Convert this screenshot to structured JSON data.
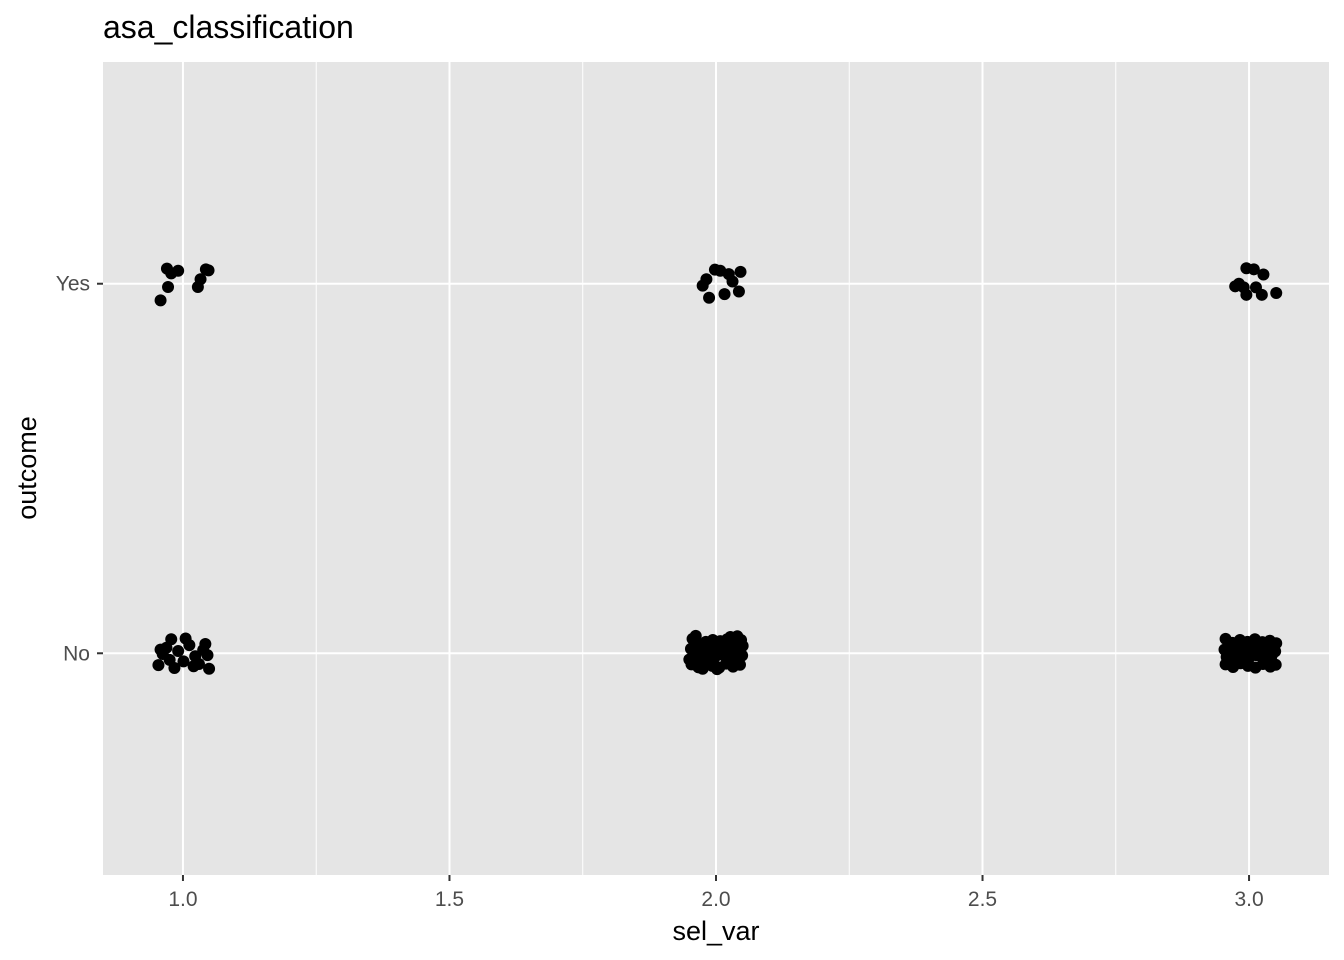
{
  "chart_data": {
    "type": "scatter",
    "title": "asa_classification",
    "xlabel": "sel_var",
    "ylabel": "outcome",
    "x_ticks": [
      "1.0",
      "1.5",
      "2.0",
      "2.5",
      "3.0"
    ],
    "x_tick_values": [
      1.0,
      1.5,
      2.0,
      2.5,
      3.0
    ],
    "x_minor_breaks": [
      1.25,
      1.75,
      2.25,
      2.75
    ],
    "y_categories": [
      "No",
      "Yes"
    ],
    "xlim": [
      0.85,
      3.15
    ],
    "ylim": [
      0.4,
      2.6
    ],
    "grid": true,
    "legend": "none",
    "panel_background": "#e5e5e5",
    "grid_color": "#ffffff",
    "point_color": "#000000",
    "jitter": 0.05,
    "series": [
      {
        "points": [
          [
            0.958,
            1.955
          ],
          [
            0.972,
            1.991
          ],
          [
            0.97,
            2.041
          ],
          [
            0.978,
            2.028
          ],
          [
            0.991,
            2.035
          ],
          [
            1.028,
            1.991
          ],
          [
            1.033,
            2.012
          ],
          [
            1.043,
            2.039
          ],
          [
            1.048,
            2.036
          ],
          [
            1.998,
            2.038
          ],
          [
            2.008,
            2.035
          ],
          [
            1.982,
            2.012
          ],
          [
            2.016,
            1.972
          ],
          [
            2.046,
            2.032
          ],
          [
            1.975,
            1.995
          ],
          [
            2.043,
            1.979
          ],
          [
            1.987,
            1.962
          ],
          [
            2.024,
            2.026
          ],
          [
            2.031,
            2.006
          ],
          [
            2.995,
            2.042
          ],
          [
            3.009,
            2.039
          ],
          [
            3.027,
            2.025
          ],
          [
            2.981,
            2.0
          ],
          [
            2.974,
            1.993
          ],
          [
            3.013,
            1.99
          ],
          [
            3.051,
            1.975
          ],
          [
            2.995,
            1.97
          ],
          [
            3.024,
            1.97
          ],
          [
            2.99,
            1.99
          ],
          [
            0.954,
            0.968
          ],
          [
            0.962,
            0.998
          ],
          [
            0.984,
            0.96
          ],
          [
            1.001,
            0.978
          ],
          [
            1.03,
            0.971
          ],
          [
            1.049,
            0.958
          ],
          [
            1.042,
            1.025
          ],
          [
            0.978,
            1.038
          ],
          [
            1.012,
            1.022
          ],
          [
            1.038,
            1.009
          ],
          [
            0.969,
            1.015
          ],
          [
            0.991,
            1.006
          ],
          [
            1.023,
            0.992
          ],
          [
            1.046,
            0.995
          ],
          [
            0.958,
            1.01
          ],
          [
            1.005,
            1.04
          ],
          [
            1.02,
            0.965
          ],
          [
            0.975,
            0.982
          ],
          [
            1.956,
            1.039
          ],
          [
            1.968,
            1.024
          ],
          [
            1.981,
            1.031
          ],
          [
            1.994,
            1.036
          ],
          [
            2.008,
            1.033
          ],
          [
            2.021,
            1.038
          ],
          [
            2.034,
            1.029
          ],
          [
            2.047,
            1.036
          ],
          [
            1.953,
            1.012
          ],
          [
            1.966,
            1.005
          ],
          [
            1.979,
            1.015
          ],
          [
            1.992,
            1.009
          ],
          [
            2.006,
            1.018
          ],
          [
            2.019,
            1.011
          ],
          [
            2.032,
            1.002
          ],
          [
            2.045,
            1.014
          ],
          [
            1.958,
            0.991
          ],
          [
            1.971,
            0.986
          ],
          [
            1.984,
            0.995
          ],
          [
            1.997,
            0.988
          ],
          [
            2.01,
            0.997
          ],
          [
            2.023,
            0.989
          ],
          [
            2.036,
            0.983
          ],
          [
            2.049,
            0.994
          ],
          [
            1.954,
            0.97
          ],
          [
            1.967,
            0.962
          ],
          [
            1.98,
            0.974
          ],
          [
            1.993,
            0.966
          ],
          [
            2.006,
            0.961
          ],
          [
            2.019,
            0.972
          ],
          [
            2.032,
            0.964
          ],
          [
            2.045,
            0.969
          ],
          [
            1.962,
            1.047
          ],
          [
            2.002,
            0.957
          ],
          [
            2.04,
            1.046
          ],
          [
            1.95,
            0.983
          ],
          [
            2.05,
            1.02
          ],
          [
            1.975,
            0.958
          ],
          [
            2.027,
            1.044
          ],
          [
            2.956,
            1.039
          ],
          [
            2.969,
            1.028
          ],
          [
            2.983,
            1.036
          ],
          [
            2.997,
            1.031
          ],
          [
            3.011,
            1.038
          ],
          [
            3.025,
            1.03
          ],
          [
            3.039,
            1.034
          ],
          [
            3.051,
            1.027
          ],
          [
            2.954,
            1.01
          ],
          [
            2.967,
            1.004
          ],
          [
            2.981,
            1.016
          ],
          [
            2.995,
            1.008
          ],
          [
            3.009,
            1.014
          ],
          [
            3.023,
            1.006
          ],
          [
            3.037,
            1.012
          ],
          [
            3.049,
            1.005
          ],
          [
            2.958,
            0.99
          ],
          [
            2.972,
            0.985
          ],
          [
            2.986,
            0.993
          ],
          [
            3.0,
            0.987
          ],
          [
            3.014,
            0.995
          ],
          [
            3.028,
            0.988
          ],
          [
            3.042,
            0.992
          ],
          [
            2.956,
            0.97
          ],
          [
            2.97,
            0.963
          ],
          [
            2.984,
            0.973
          ],
          [
            2.998,
            0.966
          ],
          [
            3.012,
            0.961
          ],
          [
            3.026,
            0.971
          ],
          [
            3.04,
            0.964
          ],
          [
            3.05,
            0.969
          ]
        ]
      }
    ]
  }
}
